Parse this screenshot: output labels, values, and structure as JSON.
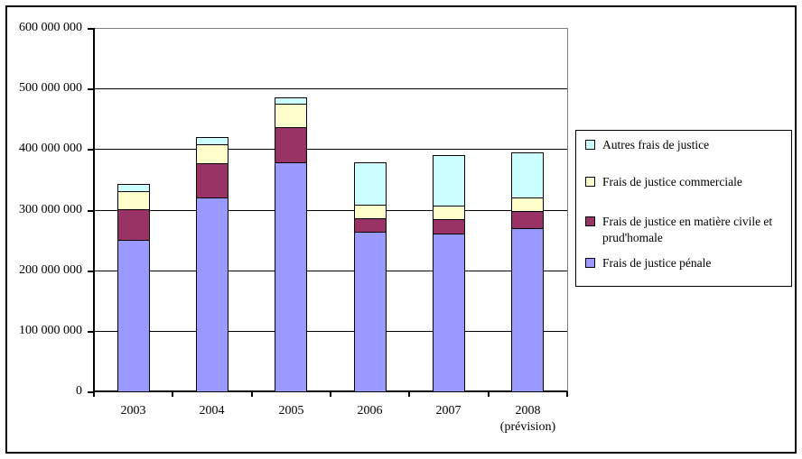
{
  "chart_data": {
    "type": "bar",
    "stacked": true,
    "title": "",
    "xlabel": "",
    "ylabel": "",
    "grid": true,
    "legend_position": "right",
    "ylim": [
      0,
      600000000
    ],
    "categories": [
      {
        "label": "2003",
        "sublabel": ""
      },
      {
        "label": "2004",
        "sublabel": ""
      },
      {
        "label": "2005",
        "sublabel": ""
      },
      {
        "label": "2006",
        "sublabel": ""
      },
      {
        "label": "2007",
        "sublabel": ""
      },
      {
        "label": "2008",
        "sublabel": "(prévision)"
      }
    ],
    "yticks": [
      {
        "value": 600000000,
        "label": "600 000 000"
      },
      {
        "value": 500000000,
        "label": "500 000 000"
      },
      {
        "value": 400000000,
        "label": "400 000 000"
      },
      {
        "value": 300000000,
        "label": "300 000 000"
      },
      {
        "value": 200000000,
        "label": "200 000 000"
      },
      {
        "value": 100000000,
        "label": "100 000 000"
      },
      {
        "value": 0,
        "label": "0"
      }
    ],
    "series": [
      {
        "name": "Frais de justice pénale",
        "color": "#9999FF",
        "values": [
          250000000,
          320000000,
          378000000,
          263000000,
          261000000,
          270000000
        ]
      },
      {
        "name": "Frais de justice en matière civile et prud'homale",
        "color": "#993366",
        "values": [
          51000000,
          57000000,
          58000000,
          23000000,
          24000000,
          28000000
        ]
      },
      {
        "name": "Frais de justice commerciale",
        "color": "#FFFFCC",
        "values": [
          30000000,
          31000000,
          39000000,
          22000000,
          22000000,
          22000000
        ]
      },
      {
        "name": "Autres frais de justice",
        "color": "#CCFFFF",
        "values": [
          12000000,
          12000000,
          11000000,
          70000000,
          83000000,
          74000000
        ]
      }
    ]
  },
  "legend": {
    "entries": [
      {
        "lines": [
          "Autres frais de justice"
        ],
        "color": "#CCFFFF"
      },
      {
        "lines": [
          "Frais de justice commerciale"
        ],
        "color": "#FFFFCC"
      },
      {
        "lines": [
          "Frais de justice en matière civile et",
          "prud'homale"
        ],
        "color": "#993366"
      },
      {
        "lines": [
          "Frais de justice pénale"
        ],
        "color": "#9999FF"
      }
    ]
  },
  "colors": {
    "axis": "#000000",
    "gridline": "#000000",
    "plot_border": "#808080",
    "chart_border": "#000000",
    "background": "#FFFFFF"
  }
}
